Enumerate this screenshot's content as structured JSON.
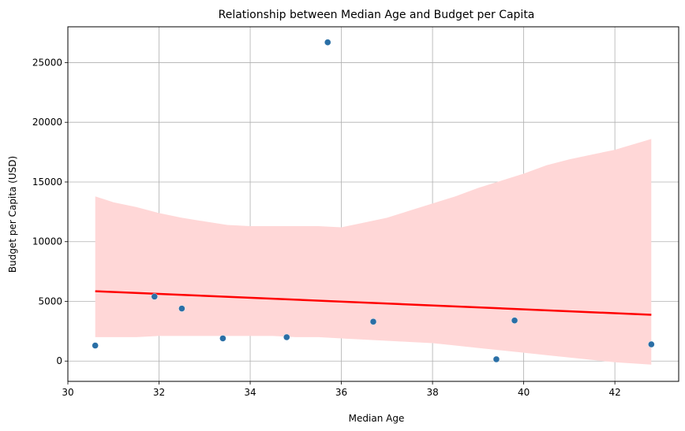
{
  "chart_data": {
    "type": "scatter",
    "title": "Relationship between Median Age and Budget per Capita",
    "xlabel": "Median Age",
    "ylabel": "Budget per Capita (USD)",
    "xlim": [
      30.0,
      43.4
    ],
    "ylim": [
      -1700,
      28000
    ],
    "xticks": [
      30,
      32,
      34,
      36,
      38,
      40,
      42
    ],
    "yticks": [
      0,
      5000,
      10000,
      15000,
      20000,
      25000
    ],
    "grid": true,
    "points": [
      {
        "x": 30.6,
        "y": 1300
      },
      {
        "x": 31.9,
        "y": 5400
      },
      {
        "x": 32.5,
        "y": 4400
      },
      {
        "x": 33.4,
        "y": 1900
      },
      {
        "x": 34.8,
        "y": 2000
      },
      {
        "x": 35.7,
        "y": 26700
      },
      {
        "x": 36.7,
        "y": 3300
      },
      {
        "x": 39.4,
        "y": 150
      },
      {
        "x": 39.8,
        "y": 3400
      },
      {
        "x": 42.8,
        "y": 1400
      }
    ],
    "regression": {
      "x": [
        30.6,
        42.8
      ],
      "y": [
        5850,
        3880
      ]
    },
    "confidence_band": {
      "x": [
        30.6,
        31.0,
        31.5,
        32.0,
        32.5,
        33.0,
        33.5,
        34.0,
        34.5,
        35.0,
        35.5,
        36.0,
        36.5,
        37.0,
        37.5,
        38.0,
        38.5,
        39.0,
        39.5,
        40.0,
        40.5,
        41.0,
        41.5,
        42.0,
        42.8
      ],
      "upper": [
        13800,
        13300,
        12900,
        12400,
        12000,
        11700,
        11400,
        11300,
        11300,
        11300,
        11300,
        11200,
        11600,
        12000,
        12600,
        13200,
        13800,
        14500,
        15100,
        15700,
        16400,
        16900,
        17300,
        17700,
        18600
      ],
      "lower": [
        2000,
        2000,
        2000,
        2100,
        2100,
        2100,
        2100,
        2100,
        2100,
        2000,
        2000,
        1900,
        1800,
        1700,
        1600,
        1500,
        1300,
        1100,
        900,
        700,
        500,
        300,
        100,
        -100,
        -300
      ]
    },
    "colors": {
      "points": "#2a6fa6",
      "regression": "#ff0000",
      "band": "#ffd7d7",
      "grid": "#b0b0b0"
    }
  }
}
